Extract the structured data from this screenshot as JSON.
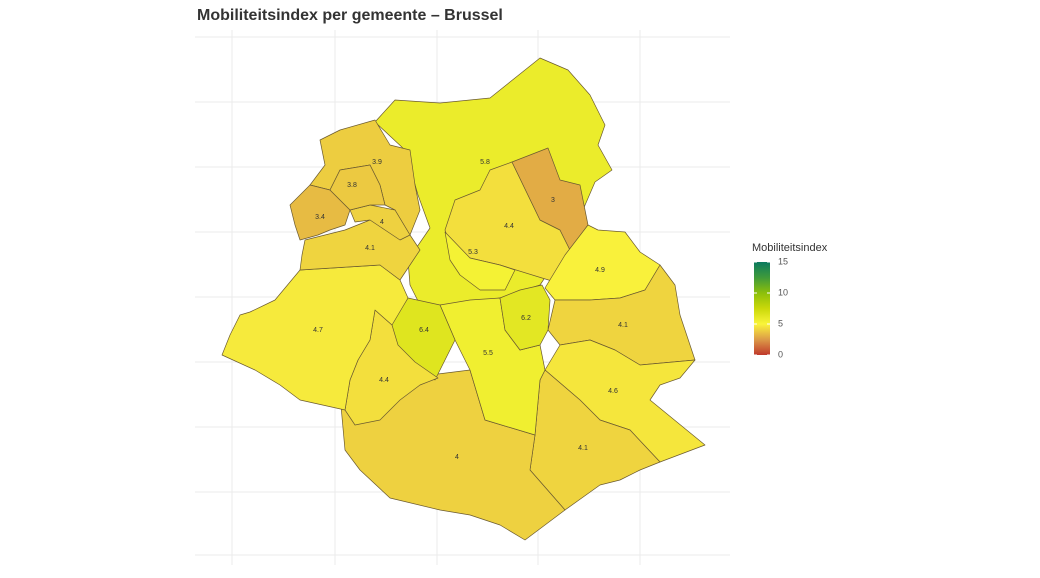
{
  "chart_data": {
    "type": "choropleth",
    "title": "Mobiliteitsindex per gemeente – Brussel",
    "legend_title": "Mobiliteitsindex",
    "values": [
      5.8,
      3,
      4.4,
      5.3,
      4.9,
      4.1,
      6.2,
      4.6,
      4.1,
      4,
      5.5,
      6.4,
      4.4,
      4.7,
      4.1,
      3.4,
      4,
      3.8,
      3.9
    ],
    "colorbar": {
      "lim": [
        0,
        15
      ],
      "ticks": [
        0,
        5,
        10,
        15
      ],
      "colors": [
        "#c0392b",
        "#dc9a48",
        "#faf53a",
        "#cad80a",
        "#8cbf0a",
        "#3f9a3a",
        "#0b7a5f"
      ]
    },
    "grid": true
  }
}
